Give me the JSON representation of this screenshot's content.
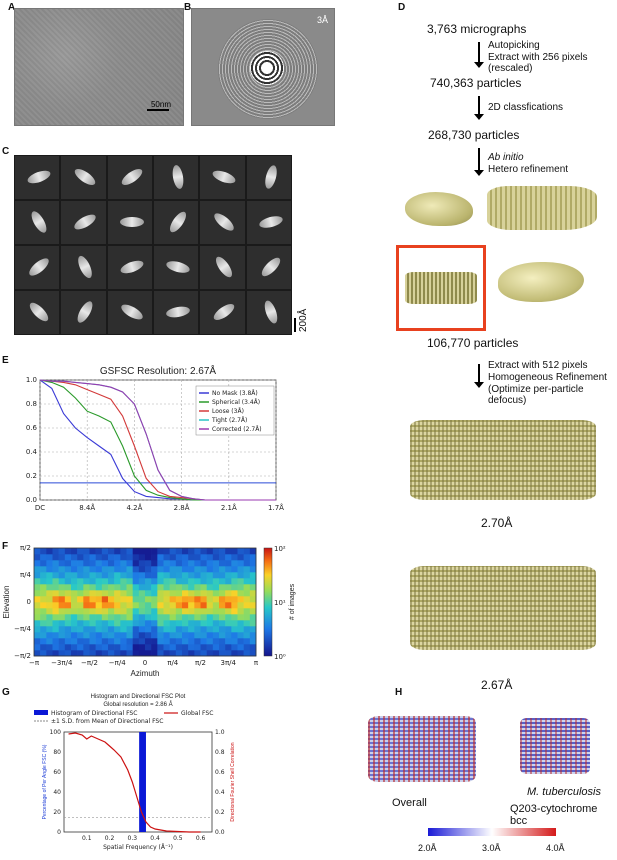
{
  "panels": {
    "A": {
      "label": "A",
      "scalebar": "50nm"
    },
    "B": {
      "label": "B",
      "resolution": "3Å"
    },
    "C": {
      "label": "C",
      "scalebar": "200Å"
    },
    "D": {
      "label": "D",
      "micrographs": "3,763 micrographs",
      "step1_line1": "Autopicking",
      "step1_line2": "Extract with 256 pixels (rescaled)",
      "particles1": "740,363 particles",
      "step2": "2D classfications",
      "particles2": "268,730 particles",
      "step3_line1": "Ab initio",
      "step3_line2": "Hetero refinement",
      "particles3": "106,770 particles",
      "step4_line1": "Extract with 512 pixels",
      "step4_line2": "Homogeneous Refinement",
      "step4_line3": "(Optimize per-particle defocus)",
      "res1": "2.70Å",
      "res2": "2.67Å"
    },
    "E": {
      "label": "E"
    },
    "F": {
      "label": "F"
    },
    "G": {
      "label": "G"
    },
    "H": {
      "label": "H",
      "overall": "Overall",
      "species": "M. tuberculosis",
      "complex": "Q203-cytochrome bcc",
      "colorbar_ticks": [
        "2.0Å",
        "3.0Å",
        "4.0Å"
      ]
    }
  },
  "chart_data": [
    {
      "type": "line",
      "panel": "E",
      "title": "GSFSC Resolution: 2.67Å",
      "xtick_labels": [
        "DC",
        "8.4Å",
        "4.2Å",
        "2.8Å",
        "2.1Å",
        "1.7Å"
      ],
      "ytick_labels": [
        "0.0",
        "0.2",
        "0.4",
        "0.6",
        "0.8",
        "1.0"
      ],
      "ylim": [
        0,
        1
      ],
      "threshold": 0.143,
      "grid": true,
      "legend_position": "top-right",
      "x": [
        0,
        0.05,
        0.1,
        0.15,
        0.2,
        0.25,
        0.3,
        0.35,
        0.4,
        0.45,
        0.5,
        0.55,
        0.6,
        0.65,
        0.7,
        0.75,
        0.8,
        0.85,
        0.9,
        0.95,
        1.0
      ],
      "series": [
        {
          "name": "No Mask (3.8Å)",
          "color": "#3a3ad6",
          "values": [
            1,
            0.93,
            0.72,
            0.6,
            0.52,
            0.45,
            0.38,
            0.18,
            0.07,
            0.03,
            0.02,
            0.01,
            0.01,
            0,
            0,
            0,
            0,
            0,
            0,
            0,
            0
          ]
        },
        {
          "name": "Spherical (3.4Å)",
          "color": "#2a9a2a",
          "values": [
            1,
            0.98,
            0.94,
            0.85,
            0.74,
            0.7,
            0.65,
            0.45,
            0.2,
            0.08,
            0.04,
            0.02,
            0.01,
            0,
            0,
            0,
            0,
            0,
            0,
            0,
            0
          ]
        },
        {
          "name": "Loose (3Å)",
          "color": "#d33a3a",
          "values": [
            1,
            0.99,
            0.98,
            0.96,
            0.92,
            0.88,
            0.84,
            0.7,
            0.45,
            0.18,
            0.07,
            0.03,
            0.02,
            0.01,
            0,
            0,
            0,
            0,
            0,
            0,
            0
          ]
        },
        {
          "name": "Tight (2.7Å)",
          "color": "#29c4c4",
          "values": [
            1,
            0.99,
            0.99,
            0.98,
            0.97,
            0.96,
            0.94,
            0.9,
            0.8,
            0.55,
            0.25,
            0.08,
            0.03,
            0.01,
            0,
            0,
            0,
            0,
            0,
            0,
            0
          ]
        },
        {
          "name": "Corrected (2.7Å)",
          "color": "#9a3ab0",
          "values": [
            1,
            0.99,
            0.99,
            0.98,
            0.97,
            0.96,
            0.94,
            0.9,
            0.8,
            0.55,
            0.25,
            0.08,
            0.03,
            0.01,
            0,
            0,
            0,
            0,
            0,
            0,
            0
          ]
        }
      ]
    },
    {
      "type": "heatmap",
      "panel": "F",
      "xlabel": "Azimuth",
      "ylabel": "Elevation",
      "xtick_labels": [
        "−π",
        "−3π/4",
        "−π/2",
        "−π/4",
        "0",
        "π/4",
        "π/2",
        "3π/4",
        "π"
      ],
      "ytick_labels": [
        "−π/2",
        "−π/4",
        "0",
        "π/4",
        "π/2"
      ],
      "colorbar_label": "# of images",
      "colorbar_ticks": [
        "10⁰",
        "10¹",
        "10²"
      ]
    },
    {
      "type": "bar",
      "panel": "G",
      "title": "Histogram and Directional FSC Plot",
      "subtitle": "Global resolution = 2.86 Å",
      "xlabel": "Spatial Frequency (Å⁻¹)",
      "ylabel": "Percentage of Per Angle FSC (%)",
      "ylabel2": "Directional Fourier Shell Correlation",
      "legend": [
        "Histogram of Directional FSC",
        "±1 S.D. from Mean of Directional FSC",
        "Global FSC"
      ],
      "xtick_labels": [
        "0.1",
        "0.2",
        "0.3",
        "0.4",
        "0.5",
        "0.6"
      ],
      "ytick_labels": [
        "0",
        "20",
        "40",
        "60",
        "80",
        "100"
      ],
      "y2tick_labels": [
        "0.0",
        "0.2",
        "0.4",
        "0.6",
        "0.8",
        "1.0"
      ],
      "histogram": {
        "x_range": [
          0.33,
          0.36
        ],
        "value": 100,
        "color": "#0a18d6"
      },
      "global_fsc": {
        "color": "#cc1111",
        "x": [
          0.02,
          0.05,
          0.08,
          0.1,
          0.12,
          0.15,
          0.18,
          0.2,
          0.22,
          0.25,
          0.28,
          0.3,
          0.32,
          0.34,
          0.36,
          0.38,
          0.4,
          0.45,
          0.5,
          0.55,
          0.6
        ],
        "values": [
          0.98,
          0.99,
          0.97,
          0.93,
          0.96,
          0.93,
          0.9,
          0.86,
          0.82,
          0.75,
          0.62,
          0.5,
          0.35,
          0.2,
          0.1,
          0.05,
          0.03,
          0.01,
          0.005,
          0,
          0
        ]
      }
    }
  ]
}
